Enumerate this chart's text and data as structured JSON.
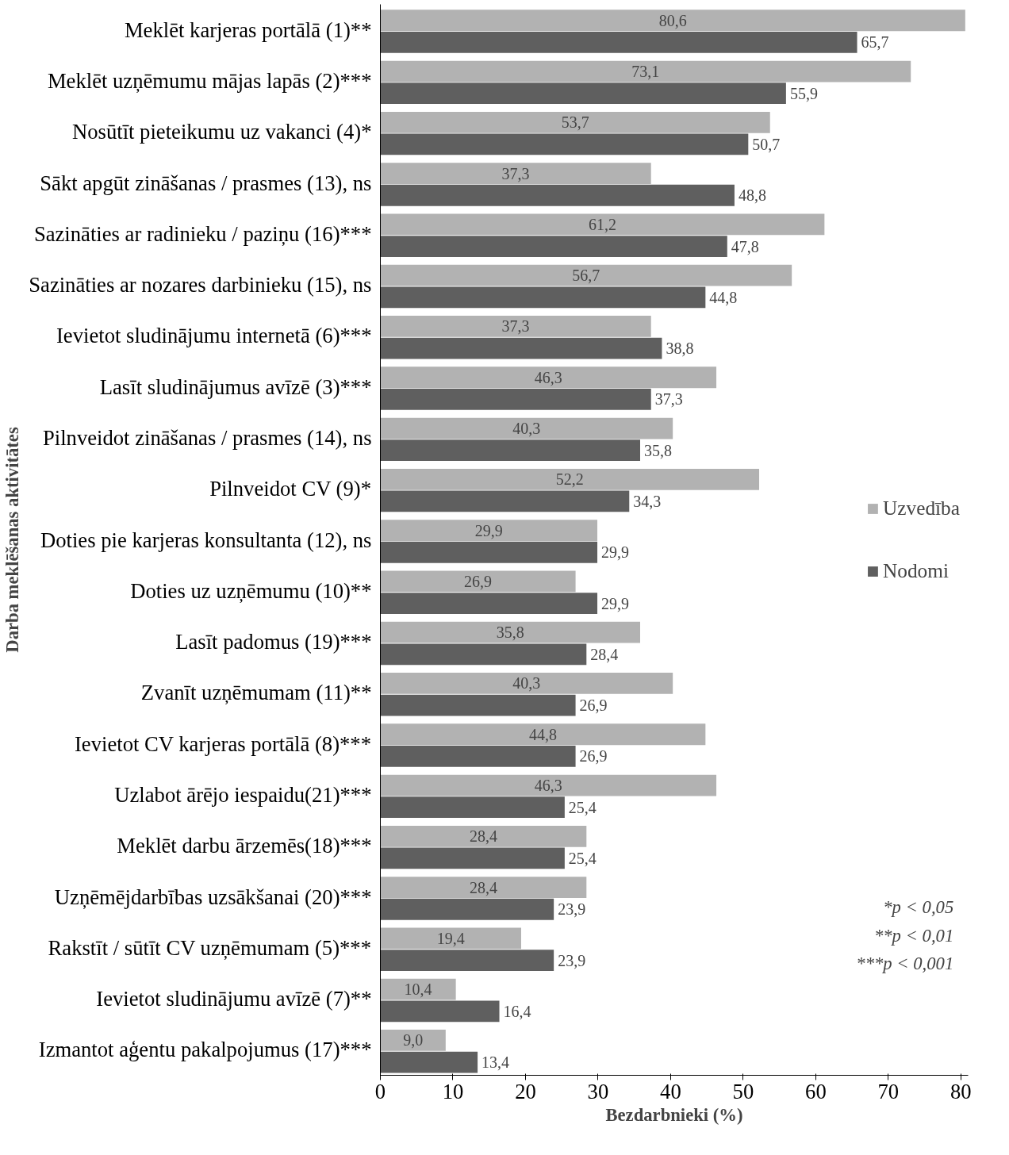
{
  "chart_data": {
    "type": "bar",
    "orientation": "horizontal",
    "xlabel": "Bezdarbnieki (%)",
    "ylabel": "Darba meklēšanas aktivitātes",
    "categories": [
      "Meklēt karjeras portālā (1)**",
      "Meklēt uzņēmumu mājas lapās (2)***",
      "Nosūtīt pieteikumu uz vakanci (4)*",
      "Sākt apgūt zināšanas / prasmes (13), ns",
      "Sazināties ar radinieku / paziņu (16)***",
      "Sazināties ar nozares darbinieku (15), ns",
      "Ievietot sludinājumu internetā (6)***",
      "Lasīt sludinājumus avīzē (3)***",
      "Pilnveidot zināšanas / prasmes (14), ns",
      "Pilnveidot CV (9)*",
      "Doties pie karjeras konsultanta (12), ns",
      "Doties uz uzņēmumu (10)**",
      "Lasīt padomus (19)***",
      "Zvanīt uzņēmumam (11)**",
      "Ievietot CV karjeras portālā (8)***",
      "Uzlabot ārējo iespaidu(21)***",
      "Meklēt darbu ārzemēs(18)***",
      "Uzņēmējdarbības uzsākšanai (20)***",
      "Rakstīt / sūtīt CV uzņēmumam (5)***",
      "Ievietot sludinājumu avīzē (7)**",
      "Izmantot aģentu pakalpojumus (17)***"
    ],
    "series": [
      {
        "name": "Uzvedība",
        "color": "#b2b2b2",
        "values": [
          80.6,
          73.1,
          53.7,
          37.3,
          61.2,
          56.7,
          37.3,
          46.3,
          40.3,
          52.2,
          29.9,
          26.9,
          35.8,
          40.3,
          44.8,
          46.3,
          28.4,
          28.4,
          19.4,
          10.4,
          9.0
        ],
        "value_labels": [
          "80,6",
          "73,1",
          "53,7",
          "37,3",
          "61,2",
          "56,7",
          "37,3",
          "46,3",
          "40,3",
          "52,2",
          "29,9",
          "26,9",
          "35,8",
          "40,3",
          "44,8",
          "46,3",
          "28,4",
          "28,4",
          "19,4",
          "10,4",
          "9,0"
        ]
      },
      {
        "name": "Nodomi",
        "color": "#5f5f5f",
        "values": [
          65.7,
          55.9,
          50.7,
          48.8,
          47.8,
          44.8,
          38.8,
          37.3,
          35.8,
          34.3,
          29.9,
          29.9,
          28.4,
          26.9,
          26.9,
          25.4,
          25.4,
          23.9,
          23.9,
          16.4,
          13.4
        ],
        "value_labels": [
          "65,7",
          "55,9",
          "50,7",
          "48,8",
          "47,8",
          "44,8",
          "38,8",
          "37,3",
          "35,8",
          "34,3",
          "29,9",
          "29,9",
          "28,4",
          "26,9",
          "26,9",
          "25,4",
          "25,4",
          "23,9",
          "23,9",
          "16,4",
          "13,4"
        ]
      }
    ],
    "xlim": [
      0,
      81
    ],
    "xticks": [
      0,
      10,
      20,
      30,
      40,
      50,
      60,
      70,
      80
    ],
    "grid": false,
    "legend": "right",
    "annotations": [
      "*p < 0,05",
      "**p < 0,01",
      "***p < 0,001"
    ]
  }
}
